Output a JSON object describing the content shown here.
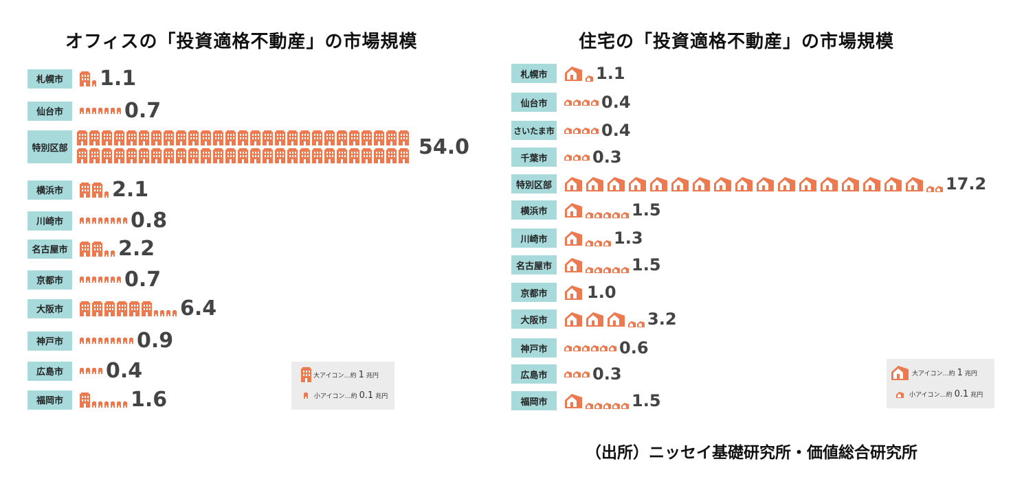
{
  "chart_data": [
    {
      "type": "pictogram-bar",
      "title": "オフィスの「投資適格不動産」の市場規模",
      "unit_note": "大アイコン…約 1 兆円 / 小アイコン…約 0.1 兆円",
      "categories": [
        "札幌市",
        "仙台市",
        "特別区部",
        "横浜市",
        "川崎市",
        "名古屋市",
        "京都市",
        "大阪市",
        "神戸市",
        "広島市",
        "福岡市"
      ],
      "values": [
        1.1,
        0.7,
        54.0,
        2.1,
        0.8,
        2.2,
        0.7,
        6.4,
        0.9,
        0.4,
        1.6
      ],
      "labels": [
        "1.1",
        "0.7",
        "54.0",
        "2.1",
        "0.8",
        "2.2",
        "0.7",
        "6.4",
        "0.9",
        "0.4",
        "1.6"
      ],
      "legend": {
        "big_prefix": "大アイコン",
        "dots": "…約",
        "big_num": "1",
        "big_unit": "兆円",
        "small_prefix": "小アイコン",
        "small_num": "0.1",
        "small_unit": "兆円"
      }
    },
    {
      "type": "pictogram-bar",
      "title": "住宅の「投資適格不動産」の市場規模",
      "unit_note": "大アイコン…約 1 兆円 / 小アイコン…約 0.1 兆円",
      "categories": [
        "札幌市",
        "仙台市",
        "さいたま市",
        "千葉市",
        "特別区部",
        "横浜市",
        "川崎市",
        "名古屋市",
        "京都市",
        "大阪市",
        "神戸市",
        "広島市",
        "福岡市"
      ],
      "values": [
        1.1,
        0.4,
        0.4,
        0.3,
        17.2,
        1.5,
        1.3,
        1.5,
        1.0,
        3.2,
        0.6,
        0.3,
        1.5
      ],
      "labels": [
        "1.1",
        "0.4",
        "0.4",
        "0.3",
        "17.2",
        "1.5",
        "1.3",
        "1.5",
        "1.0",
        "3.2",
        "0.6",
        "0.3",
        "1.5"
      ],
      "legend": {
        "big_prefix": "大アイコン",
        "dots": "…約",
        "big_num": "1",
        "big_unit": "兆円",
        "small_prefix": "小アイコン",
        "small_num": "0.1",
        "small_unit": "兆円"
      }
    }
  ],
  "colors": {
    "icon": "#ec7a50",
    "label_bg": "#a8dadc",
    "value_text": "#444444",
    "legend_bg": "#ececec"
  },
  "source": "（出所）ニッセイ基礎研究所・価値総合研究所"
}
